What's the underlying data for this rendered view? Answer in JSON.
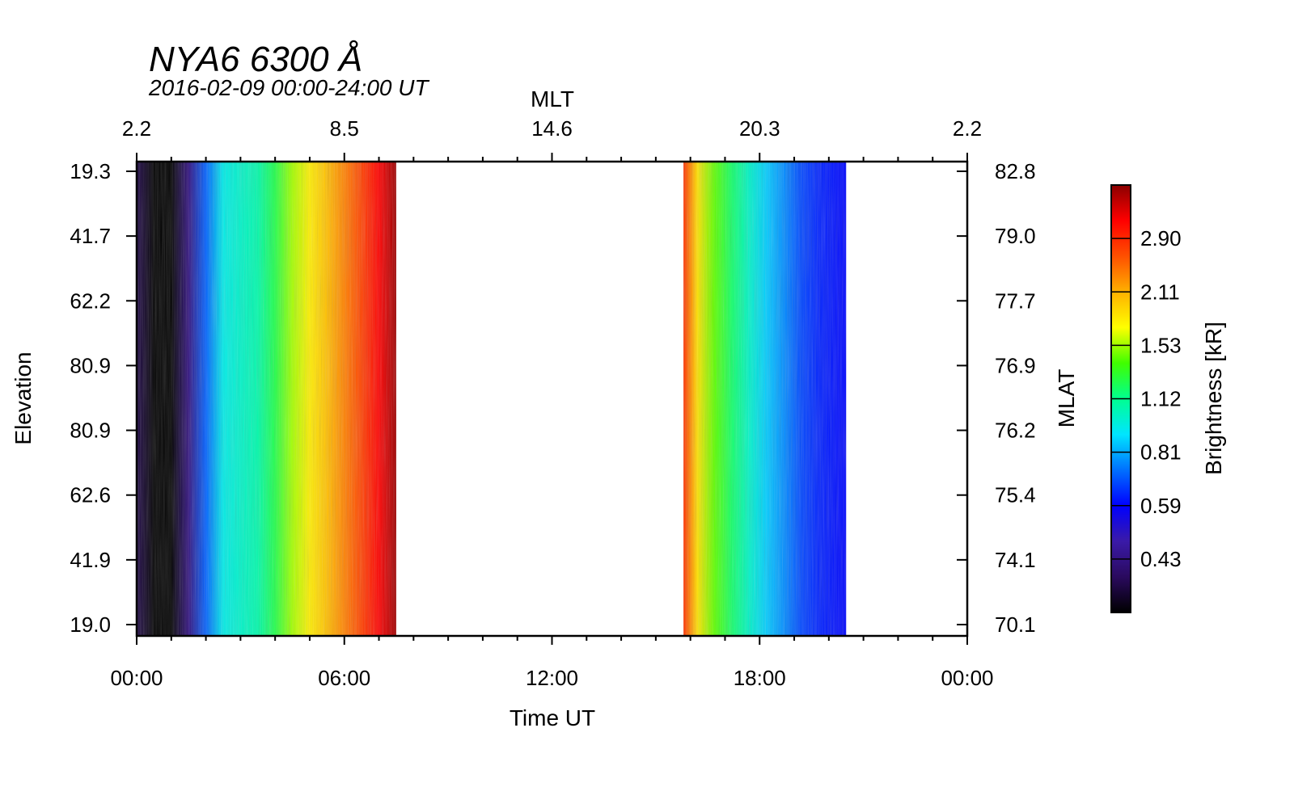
{
  "chart_data": {
    "type": "heatmap",
    "title": "NYA6 6300 Å",
    "subtitle": "2016-02-09 00:00-24:00 UT",
    "xlabel": "Time UT",
    "ylabel": "Elevation",
    "top_axis_label": "MLT",
    "right_axis_label": "MLAT",
    "colorbar_label": "Brightness [kR]",
    "x_range_hours": [
      0,
      24
    ],
    "x_ticks": [
      {
        "hour": 0,
        "label": "00:00"
      },
      {
        "hour": 6,
        "label": "06:00"
      },
      {
        "hour": 12,
        "label": "12:00"
      },
      {
        "hour": 18,
        "label": "18:00"
      },
      {
        "hour": 24,
        "label": "00:00"
      }
    ],
    "mlt_ticks": [
      {
        "hour": 0,
        "label": "2.2"
      },
      {
        "hour": 6,
        "label": "8.5"
      },
      {
        "hour": 12,
        "label": "14.6"
      },
      {
        "hour": 18,
        "label": "20.3"
      },
      {
        "hour": 24,
        "label": "2.2"
      }
    ],
    "elevation_ticks": [
      "19.3",
      "41.7",
      "62.2",
      "80.9",
      "80.9",
      "62.6",
      "41.9",
      "19.0"
    ],
    "mlat_ticks": [
      "82.8",
      "79.0",
      "77.7",
      "76.9",
      "76.2",
      "75.4",
      "74.1",
      "70.1"
    ],
    "colorbar_ticks": [
      "2.90",
      "2.11",
      "1.53",
      "1.12",
      "0.81",
      "0.59",
      "0.43"
    ],
    "colorbar_colors": [
      "#000000",
      "#2a0a5e",
      "#3a1aa8",
      "#0000ff",
      "#0070ff",
      "#00e5ff",
      "#00ff90",
      "#40ff00",
      "#ffff00",
      "#ffb000",
      "#ff5000",
      "#ff0000",
      "#8b0000"
    ],
    "data_intervals_hours": [
      {
        "start": 0.0,
        "end": 7.5
      },
      {
        "start": 15.8,
        "end": 20.5
      }
    ],
    "brightness_profile_kR": [
      {
        "hour": 0.0,
        "value": 0.35
      },
      {
        "hour": 0.5,
        "value": 0.3
      },
      {
        "hour": 1.0,
        "value": 0.3
      },
      {
        "hour": 1.5,
        "value": 0.4
      },
      {
        "hour": 2.0,
        "value": 0.65
      },
      {
        "hour": 2.5,
        "value": 0.85
      },
      {
        "hour": 3.0,
        "value": 0.9
      },
      {
        "hour": 3.5,
        "value": 0.95
      },
      {
        "hour": 4.0,
        "value": 1.1
      },
      {
        "hour": 4.5,
        "value": 1.35
      },
      {
        "hour": 5.0,
        "value": 1.55
      },
      {
        "hour": 5.5,
        "value": 1.75
      },
      {
        "hour": 6.0,
        "value": 2.0
      },
      {
        "hour": 6.5,
        "value": 2.3
      },
      {
        "hour": 7.0,
        "value": 2.7
      },
      {
        "hour": 7.5,
        "value": 3.2
      },
      {
        "hour": 15.8,
        "value": 2.4
      },
      {
        "hour": 16.2,
        "value": 1.6
      },
      {
        "hour": 16.7,
        "value": 1.25
      },
      {
        "hour": 17.2,
        "value": 1.05
      },
      {
        "hour": 17.7,
        "value": 0.9
      },
      {
        "hour": 18.2,
        "value": 0.78
      },
      {
        "hour": 18.7,
        "value": 0.7
      },
      {
        "hour": 19.2,
        "value": 0.62
      },
      {
        "hour": 19.7,
        "value": 0.58
      },
      {
        "hour": 20.5,
        "value": 0.55
      }
    ],
    "colorbar_range_kR": [
      0.3,
      3.3
    ]
  }
}
